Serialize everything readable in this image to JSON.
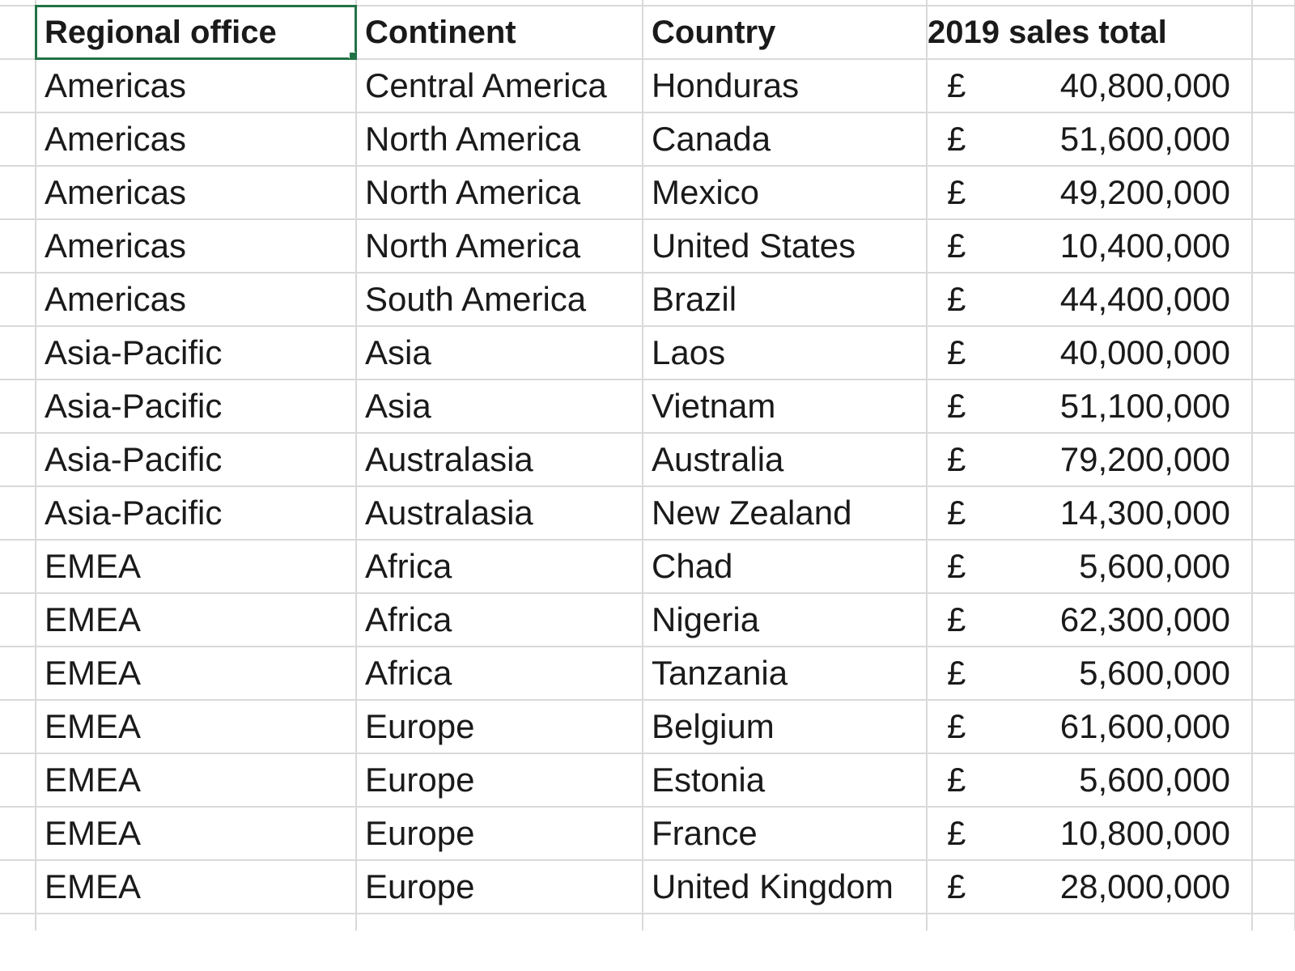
{
  "sheet": {
    "headers": {
      "regional_office": "Regional office",
      "continent": "Continent",
      "country": "Country",
      "sales": "2019 sales total"
    },
    "currency_symbol": "£",
    "rows": [
      {
        "office": "Americas",
        "continent": "Central America",
        "country": "Honduras",
        "amount": "40,800,000"
      },
      {
        "office": "Americas",
        "continent": "North America",
        "country": "Canada",
        "amount": "51,600,000"
      },
      {
        "office": "Americas",
        "continent": "North America",
        "country": "Mexico",
        "amount": "49,200,000"
      },
      {
        "office": "Americas",
        "continent": "North America",
        "country": "United States",
        "amount": "10,400,000"
      },
      {
        "office": "Americas",
        "continent": "South America",
        "country": "Brazil",
        "amount": "44,400,000"
      },
      {
        "office": "Asia-Pacific",
        "continent": "Asia",
        "country": "Laos",
        "amount": "40,000,000"
      },
      {
        "office": "Asia-Pacific",
        "continent": "Asia",
        "country": "Vietnam",
        "amount": "51,100,000"
      },
      {
        "office": "Asia-Pacific",
        "continent": "Australasia",
        "country": "Australia",
        "amount": "79,200,000"
      },
      {
        "office": "Asia-Pacific",
        "continent": "Australasia",
        "country": "New Zealand",
        "amount": "14,300,000"
      },
      {
        "office": "EMEA",
        "continent": "Africa",
        "country": "Chad",
        "amount": "5,600,000"
      },
      {
        "office": "EMEA",
        "continent": "Africa",
        "country": "Nigeria",
        "amount": "62,300,000"
      },
      {
        "office": "EMEA",
        "continent": "Africa",
        "country": "Tanzania",
        "amount": "5,600,000"
      },
      {
        "office": "EMEA",
        "continent": "Europe",
        "country": "Belgium",
        "amount": "61,600,000"
      },
      {
        "office": "EMEA",
        "continent": "Europe",
        "country": "Estonia",
        "amount": "5,600,000"
      },
      {
        "office": "EMEA",
        "continent": "Europe",
        "country": "France",
        "amount": "10,800,000"
      },
      {
        "office": "EMEA",
        "continent": "Europe",
        "country": "United Kingdom",
        "amount": "28,000,000"
      }
    ]
  },
  "colors": {
    "gridline": "#d9d9d9",
    "selection": "#217346",
    "text": "#1a1a1a"
  }
}
